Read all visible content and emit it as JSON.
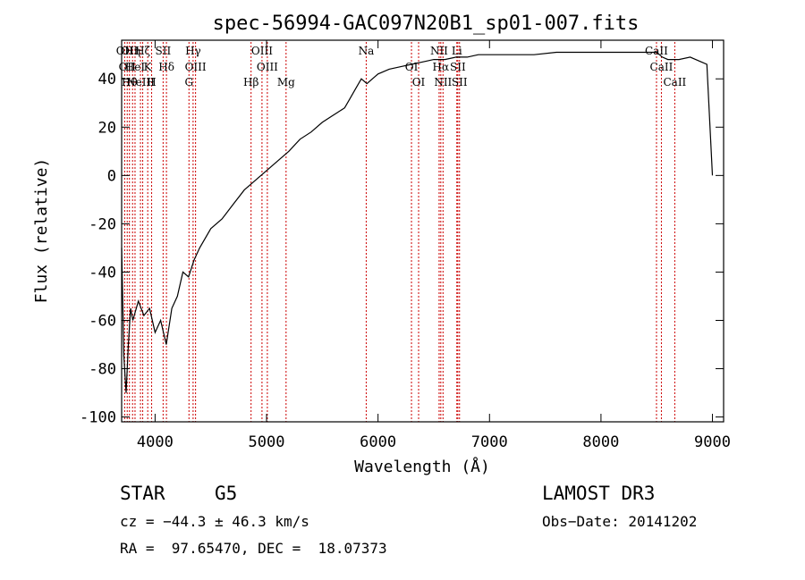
{
  "chart_data": {
    "type": "line",
    "title": "spec-56994-GAC097N20B1_sp01-007.fits",
    "xlabel": "Wavelength (Å)",
    "ylabel": "Flux (relative)",
    "xlim": [
      3700,
      9100
    ],
    "ylim": [
      -102,
      56
    ],
    "xticks": [
      4000,
      5000,
      6000,
      7000,
      8000,
      9000
    ],
    "yticks": [
      -100,
      -80,
      -60,
      -40,
      -20,
      0,
      20,
      40
    ],
    "series": [
      {
        "name": "flux",
        "x": [
          3700,
          3720,
          3740,
          3760,
          3780,
          3800,
          3850,
          3900,
          3950,
          4000,
          4050,
          4100,
          4150,
          4200,
          4250,
          4300,
          4350,
          4400,
          4500,
          4600,
          4700,
          4800,
          4900,
          5000,
          5100,
          5200,
          5300,
          5400,
          5500,
          5600,
          5700,
          5750,
          5800,
          5850,
          5900,
          5950,
          6000,
          6100,
          6200,
          6300,
          6400,
          6500,
          6600,
          6700,
          6800,
          6900,
          7000,
          7200,
          7400,
          7600,
          7800,
          8000,
          8200,
          8400,
          8500,
          8550,
          8600,
          8700,
          8800,
          8900,
          8950,
          9000
        ],
        "y": [
          -30,
          -75,
          -90,
          -70,
          -55,
          -60,
          -52,
          -58,
          -55,
          -65,
          -60,
          -70,
          -55,
          -50,
          -40,
          -42,
          -35,
          -30,
          -22,
          -18,
          -12,
          -6,
          -2,
          2,
          6,
          10,
          15,
          18,
          22,
          25,
          28,
          32,
          36,
          40,
          38,
          40,
          42,
          44,
          45,
          46,
          47,
          48,
          48,
          49,
          49,
          50,
          50,
          50,
          50,
          51,
          51,
          51,
          51,
          51,
          51,
          49,
          48,
          48,
          49,
          47,
          46,
          0
        ]
      }
    ],
    "lines": [
      {
        "x": 3727,
        "labels": [
          "OII"
        ]
      },
      {
        "x": 3750,
        "labels": [
          "OII"
        ]
      },
      {
        "x": 3770,
        "labels": [
          "Hθ",
          "OII"
        ]
      },
      {
        "x": 3798,
        "labels": [
          "Hη"
        ]
      },
      {
        "x": 3820,
        "labels": [
          "HeI"
        ]
      },
      {
        "x": 3869,
        "labels": [
          "NeIII"
        ]
      },
      {
        "x": 3889,
        "labels": [
          "Hζ"
        ]
      },
      {
        "x": 3934,
        "labels": [
          "K"
        ]
      },
      {
        "x": 3969,
        "labels": [
          "H"
        ]
      },
      {
        "x": 4072,
        "labels": [
          "SII"
        ]
      },
      {
        "x": 4102,
        "labels": [
          "Hδ"
        ]
      },
      {
        "x": 4304,
        "labels": [
          "G"
        ]
      },
      {
        "x": 4341,
        "labels": [
          "Hγ"
        ]
      },
      {
        "x": 4363,
        "labels": [
          "OIII"
        ]
      },
      {
        "x": 4861,
        "labels": [
          "Hβ"
        ]
      },
      {
        "x": 4959,
        "labels": [
          "OIII"
        ]
      },
      {
        "x": 5007,
        "labels": [
          "OIII"
        ]
      },
      {
        "x": 5175,
        "labels": [
          "Mg"
        ]
      },
      {
        "x": 5894,
        "labels": [
          "Na"
        ]
      },
      {
        "x": 6300,
        "labels": [
          "OI"
        ]
      },
      {
        "x": 6364,
        "labels": [
          "OI"
        ]
      },
      {
        "x": 6548,
        "labels": [
          "NII"
        ]
      },
      {
        "x": 6563,
        "labels": [
          "Hα"
        ]
      },
      {
        "x": 6583,
        "labels": [
          "NII"
        ]
      },
      {
        "x": 6707,
        "labels": [
          "Li"
        ]
      },
      {
        "x": 6716,
        "labels": [
          "SII"
        ]
      },
      {
        "x": 6731,
        "labels": [
          "SII"
        ]
      },
      {
        "x": 8498,
        "labels": [
          "CaII"
        ]
      },
      {
        "x": 8542,
        "labels": [
          "CaII"
        ]
      },
      {
        "x": 8662,
        "labels": [
          "CaII"
        ]
      }
    ]
  },
  "info": {
    "object_class": "STAR",
    "subclass": "G5",
    "survey": "LAMOST DR3",
    "redshift": "cz = −44.3 ± 46.3 km/s",
    "obs_date": "Obs−Date: 20141202",
    "coords": "RA =  97.65470, DEC =  18.07373"
  },
  "colors": {
    "line_marker": "#cc0000",
    "spectrum": "#000000"
  }
}
